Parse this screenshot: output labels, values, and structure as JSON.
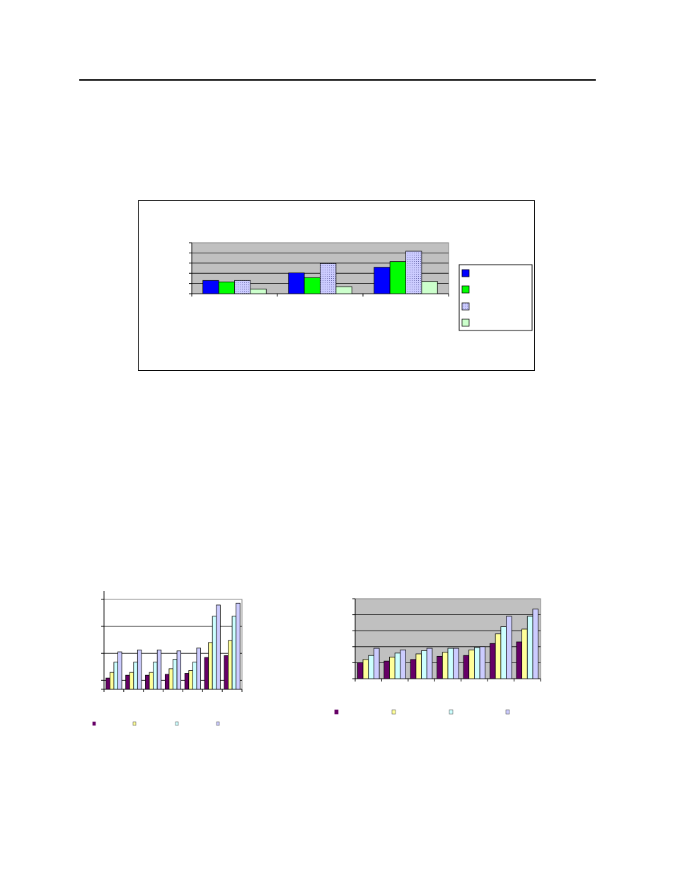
{
  "colors": {
    "plot_bg": "#c0c0c0",
    "c1_s1": "#0000ff",
    "c1_s2": "#00ff00",
    "c1_s3": "#ccccff",
    "c1_s4": "#ccffcc",
    "c2_s1": "#660066",
    "c2_s2": "#ffff99",
    "c2_s3": "#ccffff",
    "c2_s4": "#ccccff"
  },
  "chart_data": [
    {
      "type": "bar",
      "categories": [
        "",
        "",
        ""
      ],
      "series": [
        {
          "values": [
            1.4,
            2.2,
            2.8
          ]
        },
        {
          "values": [
            1.25,
            1.7,
            3.4
          ]
        },
        {
          "values": [
            1.4,
            3.2,
            4.5
          ]
        },
        {
          "values": [
            0.5,
            0.75,
            1.3
          ]
        }
      ],
      "ylim": [
        0,
        5.4
      ],
      "grid": true,
      "legend_position": "right"
    },
    {
      "type": "bar",
      "categories": [
        "",
        "",
        "",
        "",
        "",
        "",
        ""
      ],
      "series": [
        {
          "values": [
            0.6,
            0.75,
            0.75,
            0.8,
            0.85,
            1.7,
            1.8
          ]
        },
        {
          "values": [
            0.9,
            0.9,
            0.9,
            1.1,
            1.0,
            2.5,
            2.6
          ]
        },
        {
          "values": [
            1.45,
            1.45,
            1.45,
            1.6,
            1.45,
            3.9,
            3.9
          ]
        },
        {
          "values": [
            2.0,
            2.1,
            2.1,
            2.05,
            2.2,
            4.5,
            4.6
          ]
        }
      ],
      "ylim": [
        0,
        4.8
      ],
      "grid": true,
      "legend_position": "bottom"
    },
    {
      "type": "bar",
      "categories": [
        "",
        "",
        "",
        "",
        "",
        "",
        ""
      ],
      "series": [
        {
          "values": [
            1.0,
            1.1,
            1.2,
            1.4,
            1.45,
            2.2,
            2.3
          ]
        },
        {
          "values": [
            1.2,
            1.35,
            1.55,
            1.65,
            1.8,
            2.8,
            3.1
          ]
        },
        {
          "values": [
            1.45,
            1.6,
            1.75,
            1.9,
            1.95,
            3.25,
            3.9
          ]
        },
        {
          "values": [
            1.9,
            1.8,
            1.9,
            1.9,
            2.0,
            3.9,
            4.35
          ]
        }
      ],
      "ylim": [
        0,
        5.0
      ],
      "grid": true,
      "legend_position": "bottom"
    }
  ]
}
